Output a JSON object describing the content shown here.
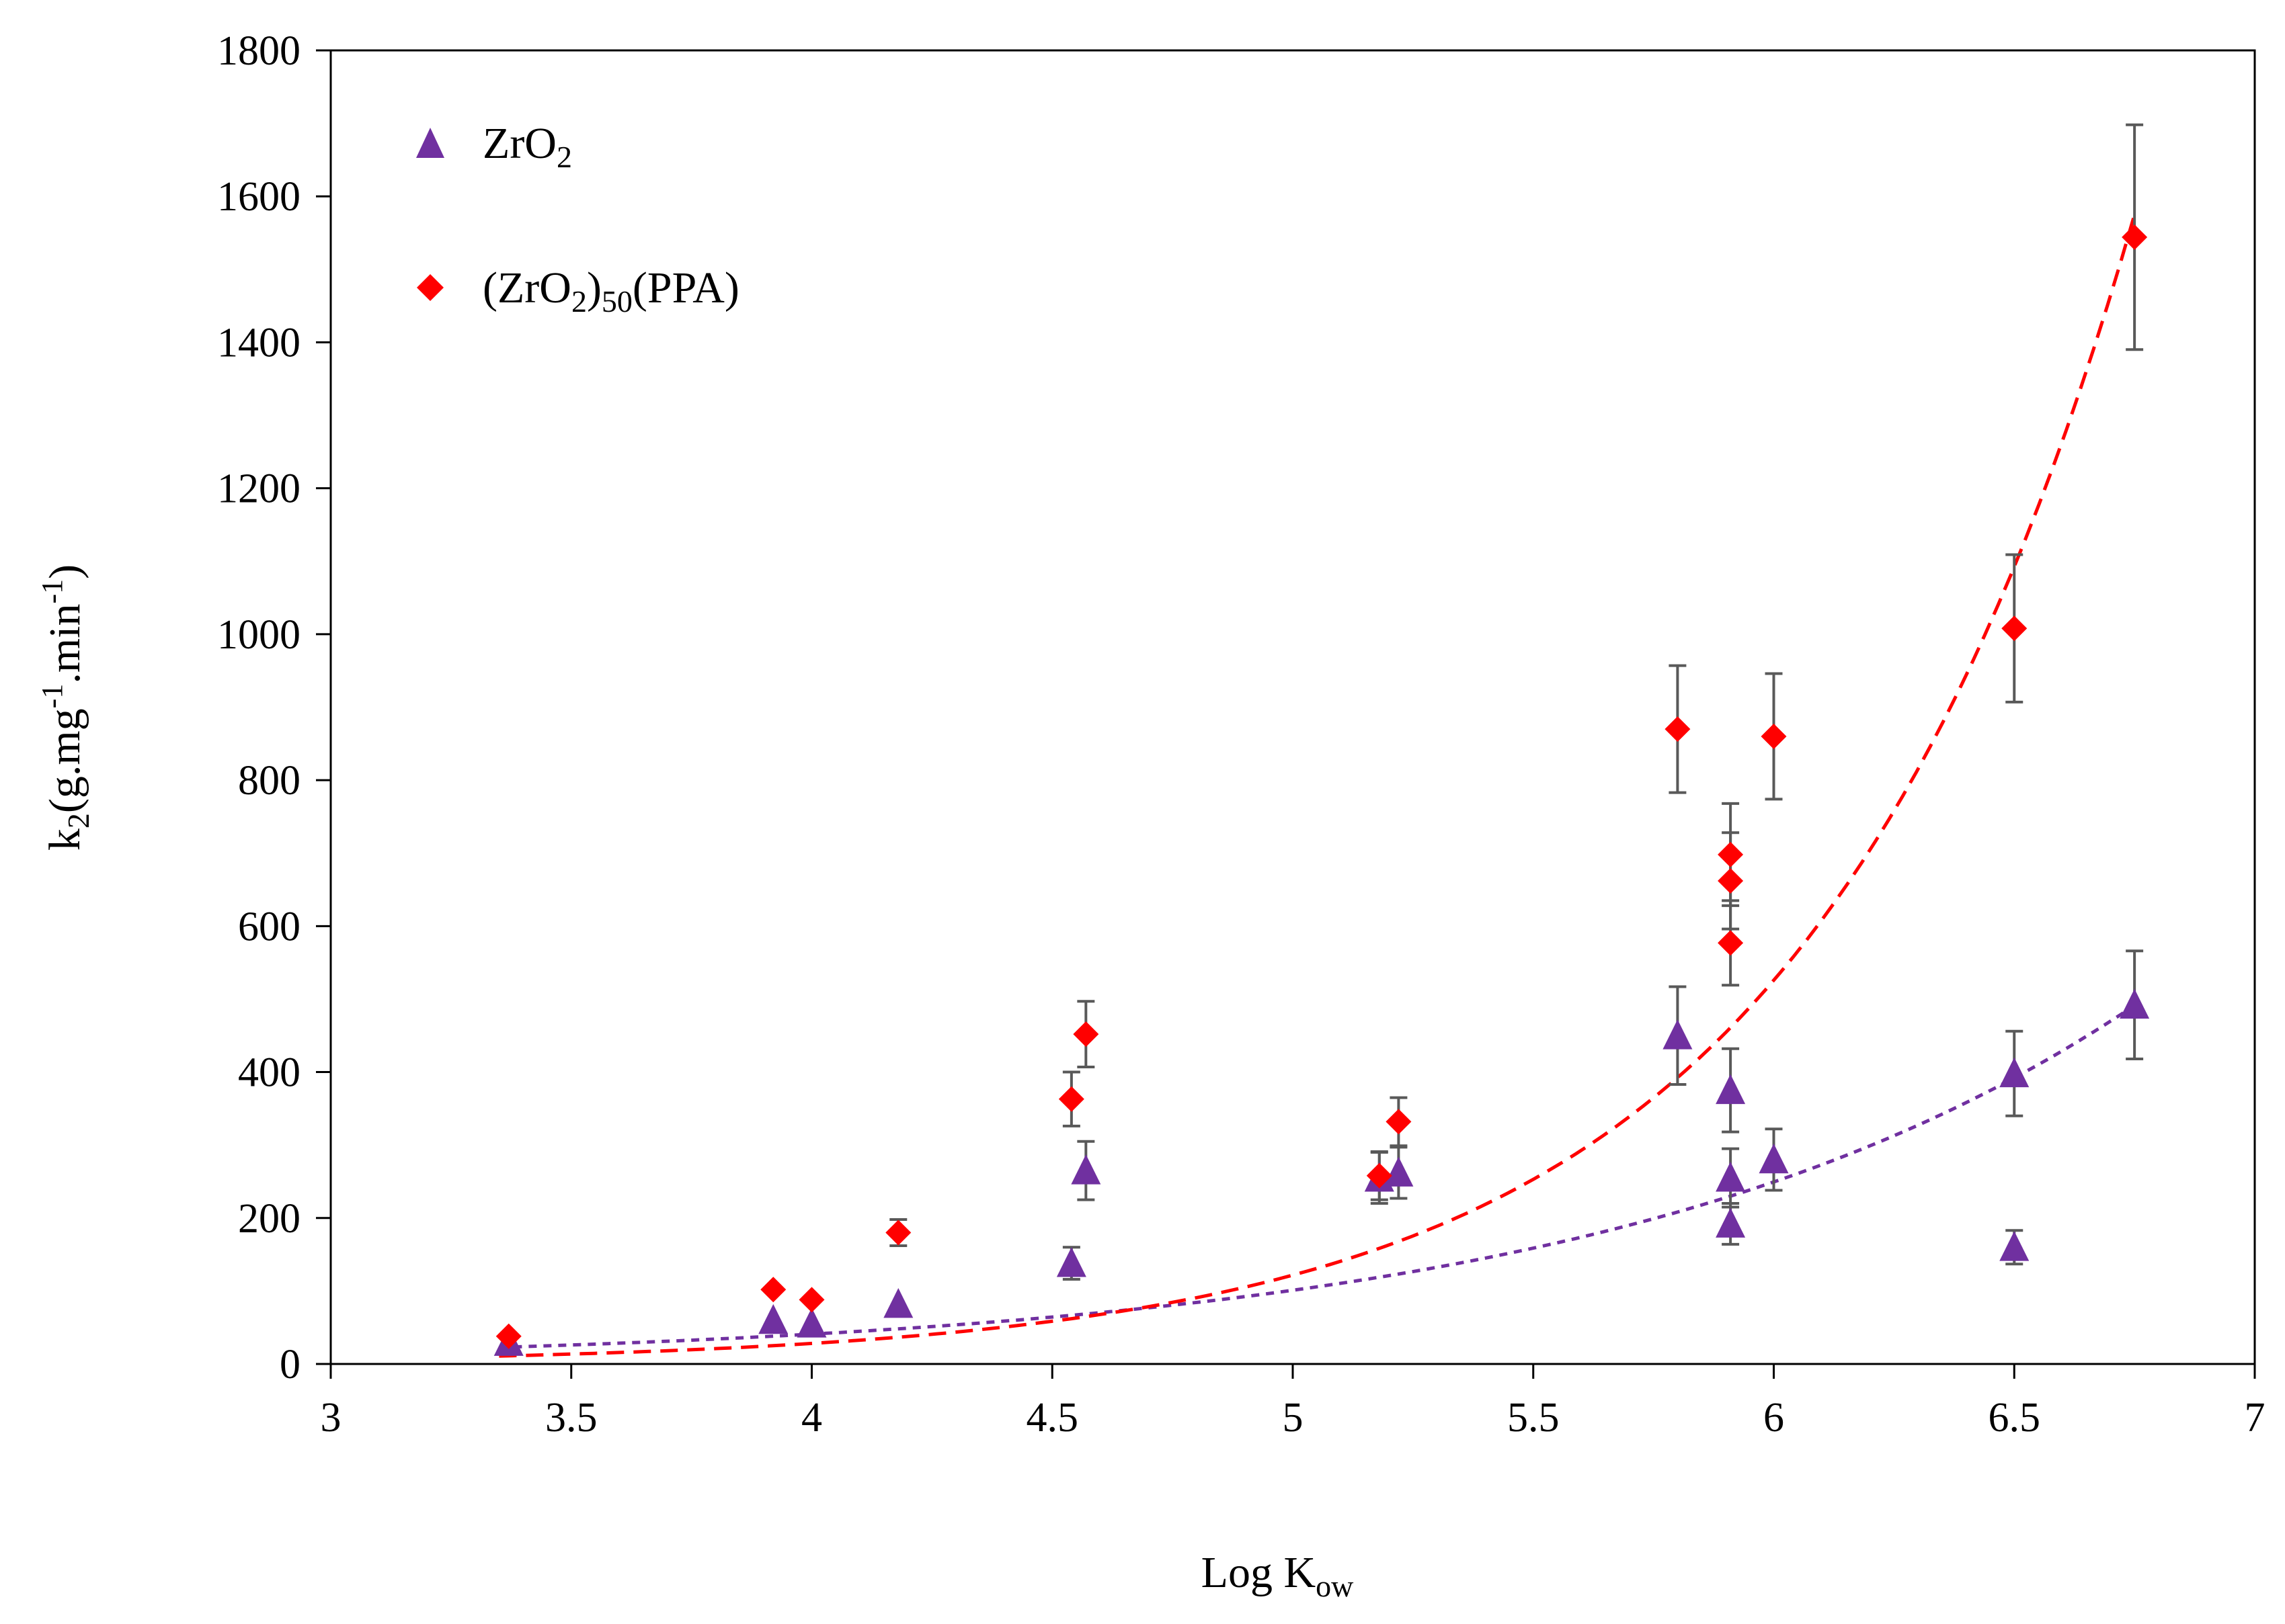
{
  "chart_data": {
    "type": "scatter",
    "title": "",
    "xlabel": {
      "main": "Log K",
      "sub": "ow"
    },
    "ylabel": {
      "parts": [
        "k",
        "2",
        "(g.mg",
        "-1",
        ".min",
        "-1",
        ")"
      ]
    },
    "xlim": [
      3,
      7
    ],
    "ylim": [
      0,
      1800
    ],
    "x_ticks": [
      3,
      3.5,
      4,
      4.5,
      5,
      5.5,
      6,
      6.5,
      7
    ],
    "x_tick_labels": [
      "3",
      "3.5",
      "4",
      "4.5",
      "5",
      "5.5",
      "6",
      "6.5",
      "7"
    ],
    "y_ticks": [
      0,
      200,
      400,
      600,
      800,
      1000,
      1200,
      1400,
      1600,
      1800
    ],
    "y_tick_labels": [
      "0",
      "200",
      "400",
      "600",
      "800",
      "1000",
      "1200",
      "1400",
      "1600",
      "1800"
    ],
    "grid": false,
    "legend_position": "top-left",
    "series": [
      {
        "name": "ZrO2",
        "legend_parts": [
          "ZrO",
          "2"
        ],
        "marker": "triangle",
        "color": "#7030A0",
        "trend_dash": "dotted",
        "points": [
          {
            "x": 3.37,
            "y": 30,
            "err": 0
          },
          {
            "x": 3.92,
            "y": 60,
            "err": 0
          },
          {
            "x": 4.0,
            "y": 55,
            "err": 0
          },
          {
            "x": 4.18,
            "y": 82,
            "err": 0
          },
          {
            "x": 4.54,
            "y": 138,
            "err": 22
          },
          {
            "x": 4.57,
            "y": 265,
            "err": 40
          },
          {
            "x": 5.18,
            "y": 255,
            "err": 35
          },
          {
            "x": 5.22,
            "y": 262,
            "err": 35
          },
          {
            "x": 5.8,
            "y": 450,
            "err": 67
          },
          {
            "x": 5.91,
            "y": 375,
            "err": 57
          },
          {
            "x": 5.91,
            "y": 255,
            "err": 40
          },
          {
            "x": 5.91,
            "y": 192,
            "err": 28
          },
          {
            "x": 6.0,
            "y": 280,
            "err": 42
          },
          {
            "x": 6.5,
            "y": 398,
            "err": 58
          },
          {
            "x": 6.5,
            "y": 160,
            "err": 23
          },
          {
            "x": 6.75,
            "y": 492,
            "err": 74
          }
        ],
        "trend": {
          "type": "exponential",
          "a": 1.1,
          "b": 0.904,
          "x_range": [
            3.35,
            6.75
          ]
        }
      },
      {
        "name": "(ZrO2)50(PPA)",
        "legend_parts": [
          "(ZrO",
          "2",
          ")",
          "50",
          "(PPA)"
        ],
        "marker": "diamond",
        "color": "#FF0000",
        "trend_dash": "dashed",
        "points": [
          {
            "x": 3.37,
            "y": 38,
            "err": 0
          },
          {
            "x": 3.92,
            "y": 102,
            "err": 0
          },
          {
            "x": 4.0,
            "y": 88,
            "err": 0
          },
          {
            "x": 4.18,
            "y": 180,
            "err": 18
          },
          {
            "x": 4.54,
            "y": 363,
            "err": 37
          },
          {
            "x": 4.57,
            "y": 452,
            "err": 45
          },
          {
            "x": 5.18,
            "y": 258,
            "err": 33
          },
          {
            "x": 5.22,
            "y": 332,
            "err": 33
          },
          {
            "x": 5.8,
            "y": 870,
            "err": 87
          },
          {
            "x": 5.91,
            "y": 698,
            "err": 70
          },
          {
            "x": 5.91,
            "y": 662,
            "err": 66
          },
          {
            "x": 5.91,
            "y": 577,
            "err": 58
          },
          {
            "x": 6.0,
            "y": 860,
            "err": 86
          },
          {
            "x": 6.5,
            "y": 1008,
            "err": 101
          },
          {
            "x": 6.75,
            "y": 1544,
            "err": 154
          }
        ],
        "trend": {
          "type": "exponential",
          "a": 0.081,
          "b": 1.463,
          "x_range": [
            3.35,
            6.75
          ]
        }
      }
    ]
  }
}
